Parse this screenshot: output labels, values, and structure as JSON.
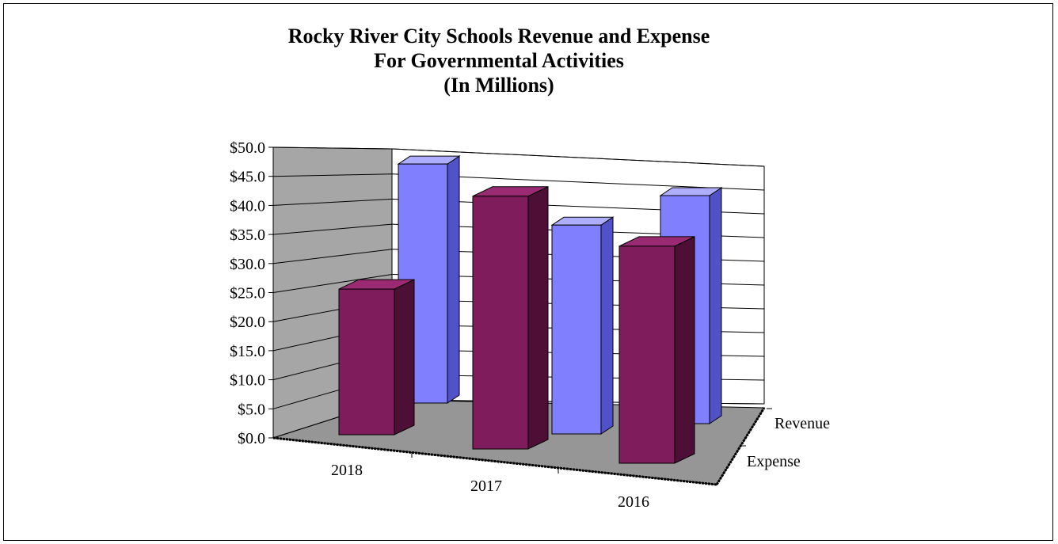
{
  "chart_data": {
    "type": "bar",
    "title_lines": [
      "Rocky River City Schools Revenue and Expense",
      "For Governmental Activities",
      "(In Millions)"
    ],
    "categories": [
      "2018",
      "2017",
      "2016"
    ],
    "series": [
      {
        "name": "Expense",
        "values": [
          26.5,
          46.0,
          39.5
        ]
      },
      {
        "name": "Revenue",
        "values": [
          43.5,
          38.0,
          41.5
        ]
      }
    ],
    "ylim": [
      0,
      50
    ],
    "yticks": [
      "$0.0",
      "$5.0",
      "$10.0",
      "$15.0",
      "$20.0",
      "$25.0",
      "$30.0",
      "$35.0",
      "$40.0",
      "$45.0",
      "$50.0"
    ],
    "grid": true,
    "style": "3d-column",
    "colors": {
      "expense_front": "#7f1d5c",
      "expense_top": "#9a2a72",
      "expense_side": "#4d0f36",
      "revenue_front": "#8080ff",
      "revenue_top": "#aeaefe",
      "revenue_side": "#5252c8",
      "wall_left": "#a6a6a6",
      "floor": "#969696"
    }
  }
}
